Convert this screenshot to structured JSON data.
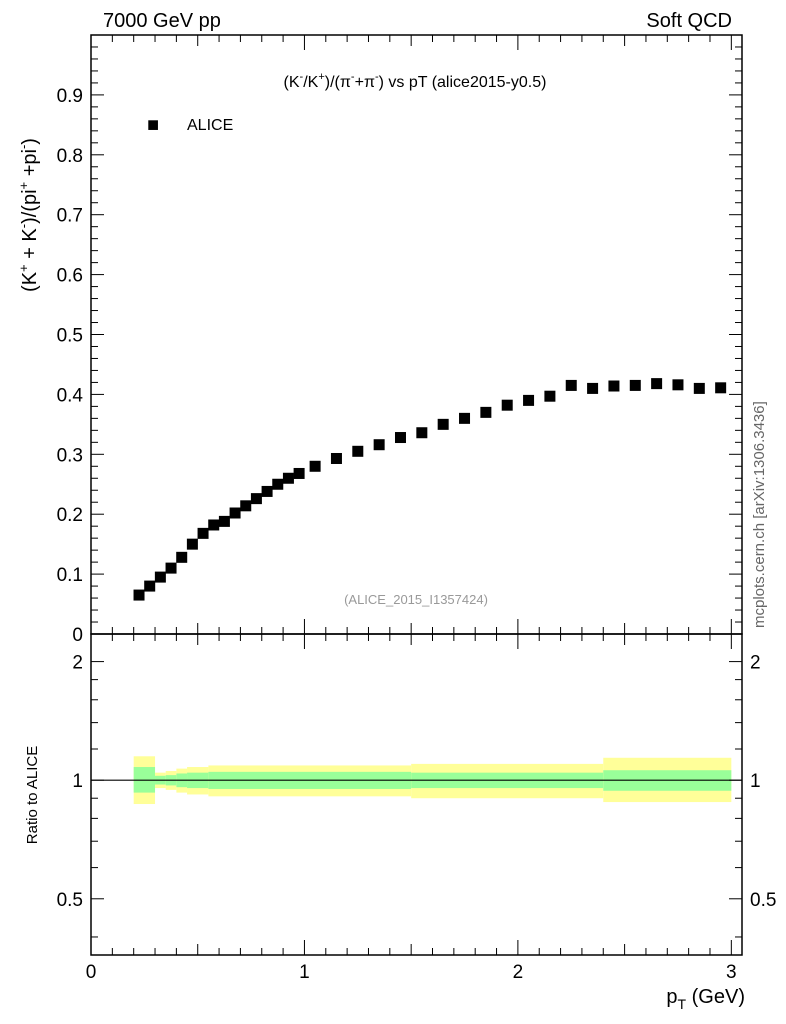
{
  "header": {
    "left": "7000 GeV pp",
    "right": "Soft QCD"
  },
  "side_label": "mcplots.cern.ch [arXiv:1306.3436]",
  "watermark": "(ALICE_2015_I1357424)",
  "legend_marker": "■",
  "chart_data": [
    {
      "type": "scatter",
      "title_parts": [
        "(K",
        "-",
        "/K",
        "+",
        ")/(π",
        "-",
        "+π",
        "-",
        ") vs pT (alice2015-y0.5)"
      ],
      "ylabel_parts": [
        "(K",
        "+",
        " + K",
        "-",
        ")/(pi",
        "+",
        " +pi",
        "-",
        ")"
      ],
      "xlim": [
        0,
        3.05
      ],
      "ylim": [
        0,
        1.0
      ],
      "yticks": [
        0,
        0.1,
        0.2,
        0.3,
        0.4,
        0.5,
        0.6,
        0.7,
        0.8,
        0.9
      ],
      "ytick_labels": [
        "0",
        "0.1",
        "0.2",
        "0.3",
        "0.4",
        "0.5",
        "0.6",
        "0.7",
        "0.8",
        "0.9"
      ],
      "legend": {
        "position": "top-left"
      },
      "series": [
        {
          "name": "ALICE",
          "color": "#000000",
          "x": [
            0.225,
            0.275,
            0.325,
            0.375,
            0.425,
            0.475,
            0.525,
            0.575,
            0.625,
            0.675,
            0.725,
            0.775,
            0.825,
            0.875,
            0.925,
            0.975,
            1.05,
            1.15,
            1.25,
            1.35,
            1.45,
            1.55,
            1.65,
            1.75,
            1.85,
            1.95,
            2.05,
            2.15,
            2.25,
            2.35,
            2.45,
            2.55,
            2.65,
            2.75,
            2.85,
            2.95
          ],
          "y": [
            0.065,
            0.08,
            0.095,
            0.11,
            0.128,
            0.15,
            0.168,
            0.182,
            0.188,
            0.202,
            0.214,
            0.226,
            0.238,
            0.25,
            0.26,
            0.268,
            0.28,
            0.293,
            0.305,
            0.316,
            0.328,
            0.336,
            0.35,
            0.36,
            0.37,
            0.382,
            0.39,
            0.397,
            0.415,
            0.41,
            0.414,
            0.415,
            0.418,
            0.416,
            0.41,
            0.411
          ]
        }
      ]
    },
    {
      "type": "area",
      "ylabel": "Ratio to ALICE",
      "xlabel_parts": [
        "p",
        "T",
        " (GeV)"
      ],
      "xlim": [
        0,
        3.05
      ],
      "ylim": [
        0.36,
        2.35
      ],
      "log_y": true,
      "xticks": [
        0,
        1,
        2,
        3
      ],
      "xtick_labels": [
        "0",
        "1",
        "2",
        "3"
      ],
      "yticks": [
        0.5,
        1,
        2
      ],
      "ytick_labels": [
        "0.5",
        "1",
        "2"
      ],
      "reference_line": 1,
      "bands": {
        "edges": [
          0.2,
          0.3,
          0.35,
          0.4,
          0.45,
          0.55,
          1.5,
          2.4,
          3.0
        ],
        "inner_color": "#99ff99",
        "outer_color": "#ffff99",
        "inner": [
          [
            0.93,
            1.08
          ],
          [
            0.975,
            1.026
          ],
          [
            0.97,
            1.03
          ],
          [
            0.96,
            1.04
          ],
          [
            0.955,
            1.045
          ],
          [
            0.95,
            1.05
          ],
          [
            0.955,
            1.045
          ],
          [
            0.94,
            1.06
          ]
        ],
        "outer": [
          [
            0.87,
            1.15
          ],
          [
            0.955,
            1.045
          ],
          [
            0.945,
            1.055
          ],
          [
            0.93,
            1.07
          ],
          [
            0.92,
            1.08
          ],
          [
            0.91,
            1.09
          ],
          [
            0.9,
            1.1
          ],
          [
            0.88,
            1.14
          ]
        ]
      }
    }
  ]
}
